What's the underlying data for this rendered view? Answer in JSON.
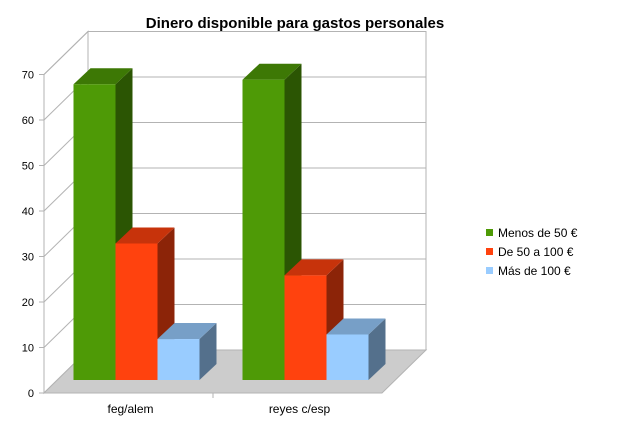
{
  "chart_data": {
    "type": "bar",
    "title": "Dinero disponible para gastos personales",
    "categories": [
      "feg/alem",
      "reyes c/esp"
    ],
    "series": [
      {
        "name": "Menos de 50 €",
        "values": [
          65,
          66
        ],
        "color": "#4e9a06"
      },
      {
        "name": "De 50 a 100 €",
        "values": [
          30,
          23
        ],
        "color": "#ff420e"
      },
      {
        "name": "Más de 100 €",
        "values": [
          9,
          10
        ],
        "color": "#99ccff"
      }
    ],
    "yticks": [
      0,
      10,
      20,
      30,
      40,
      50,
      60,
      70
    ],
    "ylim": [
      0,
      70
    ],
    "three_d": true,
    "grid": true,
    "legend_position": "right"
  }
}
